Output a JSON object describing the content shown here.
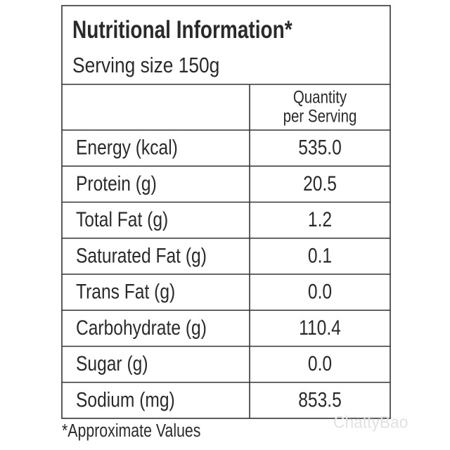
{
  "header": {
    "title": "Nutritional Information*",
    "serving_size": "Serving size 150g"
  },
  "table": {
    "column_header": [
      "Quantity",
      "per Serving"
    ],
    "rows": [
      [
        "Energy (kcal)",
        "535.0"
      ],
      [
        "Protein (g)",
        "20.5"
      ],
      [
        "Total Fat (g)",
        "1.2"
      ],
      [
        "Saturated Fat (g)",
        "0.1"
      ],
      [
        "Trans Fat (g)",
        "0.0"
      ],
      [
        "Carbohydrate (g)",
        "110.4"
      ],
      [
        "Sugar (g)",
        "0.0"
      ],
      [
        "Sodium (mg)",
        "853.5"
      ]
    ]
  },
  "footnote": "*Approximate Values",
  "watermark": "ChattyBao"
}
